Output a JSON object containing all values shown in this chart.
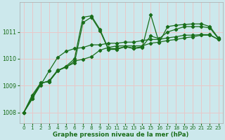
{
  "title": "Graphe pression niveau de la mer (hPa)",
  "background_color": "#cce8ec",
  "grid_color": "#e8c8c8",
  "line_color": "#1a6e1a",
  "xlim": [
    -0.5,
    23.5
  ],
  "ylim": [
    1007.6,
    1012.1
  ],
  "yticks": [
    1008,
    1009,
    1010,
    1011
  ],
  "xticks": [
    0,
    1,
    2,
    3,
    4,
    5,
    6,
    7,
    8,
    9,
    10,
    11,
    12,
    13,
    14,
    15,
    16,
    17,
    18,
    19,
    20,
    21,
    22,
    23
  ],
  "series": [
    [
      1008.0,
      1008.5,
      1009.1,
      1009.15,
      1009.55,
      1009.7,
      1009.85,
      1011.35,
      1011.55,
      1011.05,
      1010.35,
      1010.35,
      1010.45,
      1010.4,
      1010.45,
      1010.85,
      1010.75,
      1011.0,
      1011.1,
      1011.2,
      1011.2,
      1011.2,
      1011.15,
      1010.75
    ],
    [
      1008.0,
      1008.65,
      1009.1,
      1009.15,
      1009.55,
      1009.72,
      1010.0,
      1011.55,
      1011.6,
      1011.1,
      1010.38,
      1010.38,
      1010.45,
      1010.38,
      1010.42,
      1011.65,
      1010.6,
      1011.2,
      1011.25,
      1011.28,
      1011.3,
      1011.3,
      1011.2,
      1010.78
    ],
    [
      1008.0,
      1008.58,
      1009.08,
      1009.18,
      1009.58,
      1009.68,
      1009.92,
      1009.98,
      1010.08,
      1010.32,
      1010.42,
      1010.48,
      1010.48,
      1010.48,
      1010.48,
      1010.58,
      1010.62,
      1010.68,
      1010.72,
      1010.78,
      1010.82,
      1010.88,
      1010.88,
      1010.72
    ],
    [
      1008.0,
      1008.52,
      1009.02,
      1009.55,
      1010.05,
      1010.28,
      1010.38,
      1010.42,
      1010.52,
      1010.52,
      1010.58,
      1010.58,
      1010.62,
      1010.62,
      1010.68,
      1010.72,
      1010.72,
      1010.78,
      1010.82,
      1010.88,
      1010.88,
      1010.9,
      1010.9,
      1010.72
    ]
  ]
}
